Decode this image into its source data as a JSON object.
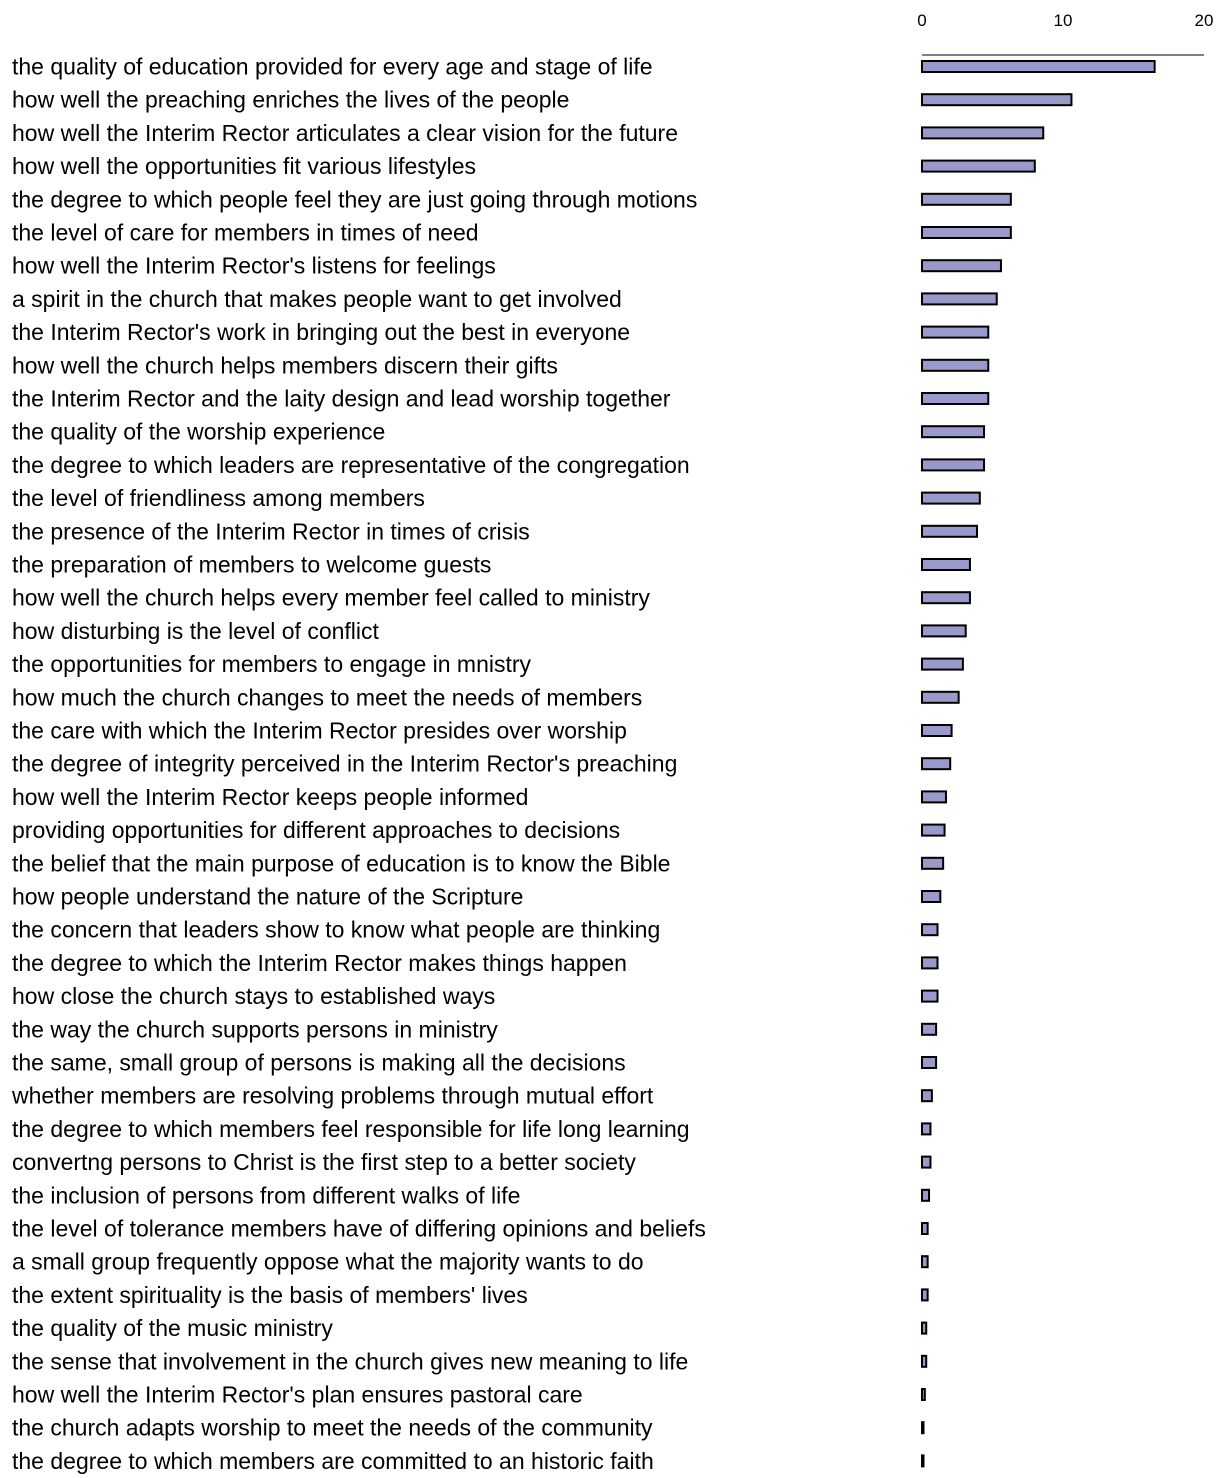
{
  "chart_data": {
    "type": "bar",
    "orientation": "horizontal",
    "title": "",
    "xlabel": "",
    "ylabel": "",
    "xlim": [
      0,
      20
    ],
    "ticks": [
      0,
      10,
      20
    ],
    "tick_labels": [
      "0",
      "10",
      "20"
    ],
    "axis_position": "top",
    "grid": false,
    "legend": "none",
    "bar_color": "#9999cc",
    "bar_edge_color": "#000000",
    "categories": [
      "the quality of education provided for every age and stage of life",
      "how well the preaching enriches the lives of the people",
      "how well the Interim Rector articulates a clear vision for the future",
      "how well the opportunities fit various lifestyles",
      "the degree to which people feel they are just going through motions",
      "the level of care for members in times of need",
      "how well the Interim Rector's listens for feelings",
      "a spirit in the church that makes people want to get involved",
      "the Interim Rector's work in bringing out the best in everyone",
      "how well the church helps members discern their gifts",
      "the Interim Rector and the laity design and lead worship together",
      "the quality of the worship experience",
      "the degree to which leaders are representative of the congregation",
      "the level of friendliness among members",
      "the presence of the Interim Rector in times of crisis",
      "the preparation of members to welcome guests",
      "how well the church helps every member feel called to ministry",
      "how disturbing is the level of conflict",
      "the opportunities for members to engage in mnistry",
      "how much the church changes to meet the needs of members",
      "the care with which the Interim Rector presides over worship",
      "the degree of integrity perceived in the Interim Rector's preaching",
      "how well the Interim Rector keeps people informed",
      "providing opportunities for different approaches to decisions",
      "the belief that the main purpose of education is to know the Bible",
      "how people understand the nature of the Scripture",
      "the concern that leaders show to know what people are thinking",
      "the degree to which the Interim Rector makes things happen",
      "how close the church stays to established ways",
      "the way the church supports persons in ministry",
      "the same, small group of persons is making all the decisions",
      "whether members are resolving problems through mutual effort",
      "the degree to which members feel responsible for life long learning",
      "convertng persons to Christ is the first step to a better society",
      "the inclusion of persons from different walks of life",
      "the level of tolerance members have of differing opinions and beliefs",
      "a small group frequently oppose what the majority wants to do",
      "the extent spirituality is the basis of members' lives",
      "the quality of the music ministry",
      "the sense that involvement in the church gives new meaning to life",
      "how well the Interim Rector's plan  ensures pastoral care",
      "the church adapts worship to meet the needs of the community",
      "the degree to which members are committed to an historic faith"
    ],
    "values": [
      16.5,
      10.6,
      8.6,
      8.0,
      6.3,
      6.3,
      5.6,
      5.3,
      4.7,
      4.7,
      4.7,
      4.4,
      4.4,
      4.1,
      3.9,
      3.4,
      3.4,
      3.1,
      2.9,
      2.6,
      2.1,
      2.0,
      1.7,
      1.6,
      1.5,
      1.3,
      1.1,
      1.1,
      1.1,
      1.0,
      1.0,
      0.7,
      0.6,
      0.6,
      0.5,
      0.4,
      0.4,
      0.4,
      0.3,
      0.3,
      0.2,
      0.1,
      0.1
    ]
  }
}
